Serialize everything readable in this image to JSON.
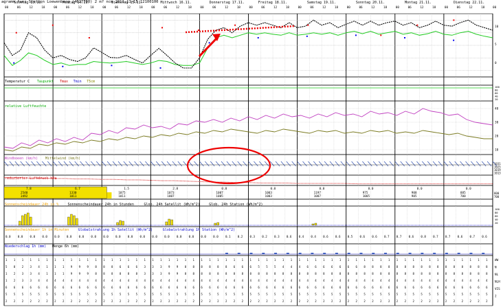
{
  "header": "agramm fuer Station Loewenberg (4627700) 2 m? ncm 2011-11-15 12100100",
  "days": [
    {
      "label": "Sonntag 13.11."
    },
    {
      "label": "Montag 14.11."
    },
    {
      "label": "Dienstag 15.11."
    },
    {
      "label": "Mittwoch 16.11."
    },
    {
      "label": "Donnerstag 17.11."
    },
    {
      "label": "Freitag 18.11."
    },
    {
      "label": "Samstag 19.11."
    },
    {
      "label": "Sonntag 20.11."
    },
    {
      "label": "Montag 21.11."
    },
    {
      "label": "Dienstag 22.11."
    }
  ],
  "hour_ticks": [
    "00",
    "06",
    "12",
    "18"
  ],
  "panel_labels": {
    "temp": [
      "Temperatur C",
      "Taupunkt",
      "Tmax",
      "Tmin",
      "T5cm"
    ],
    "humidity": "relative Luftfeuchte",
    "wind": [
      "Windboeen (km/h)",
      "Mittelwind (km/h)"
    ],
    "pressure": "reduzierter Luftdruck hPa",
    "sun": [
      "Sonnenscheindauer 24h in %",
      "Sonnenscheindauer 24h in Stunden",
      "Glob. 24h Satellit (Wh/m^2)",
      "Glob. 24h Station (Wh/m^2)"
    ],
    "sun1h": [
      "Sonnenscheindauer 1h in Minuten",
      "Globalstrahlung 1h Satellit (Wh/m^2)",
      "Globalstrahlung 1h Station (Wh/m^2)"
    ],
    "precip": [
      "Niederschlag 1h (mm)",
      "Menge 6h (mm)"
    ]
  },
  "right_axis": {
    "temp": [
      "10",
      "5",
      "0"
    ],
    "small": [
      "100",
      "80",
      "60",
      "40",
      "20"
    ],
    "humidity": [
      "40",
      "30",
      "20",
      "10"
    ],
    "pressure": [
      "1031",
      "1025",
      "1019",
      "1013"
    ],
    "sun24": [
      "800",
      "700"
    ],
    "sun1h": [
      "100",
      "80",
      "60",
      "40",
      "20"
    ],
    "codes": [
      "WW",
      "N",
      "NL",
      "NLH",
      "VIS",
      "2"
    ]
  },
  "sun24_values": [
    {
      "top": "7.8",
      "mid": "2540",
      "bot": "3492"
    },
    {
      "top": "6.7",
      "mid": "1330",
      "bot": "1011"
    },
    {
      "top": "1.5",
      "mid": "1075",
      "bot": "1011"
    },
    {
      "top": "2.8",
      "mid": "1073",
      "bot": "1007"
    },
    {
      "top": "0.8",
      "mid": "1007",
      "bot": "1005"
    },
    {
      "top": "0.0",
      "mid": "1003",
      "bot": "1003"
    },
    {
      "top": "0.0",
      "mid": "1197",
      "bot": "1007"
    },
    {
      "top": "0.0",
      "mid": "975",
      "bot": "1005"
    },
    {
      "top": "0.0",
      "mid": "908",
      "bot": "905"
    },
    {
      "top": "0.0",
      "mid": "885",
      "bot": "700"
    }
  ],
  "precip_values": [
    "0.0",
    "0.0",
    "0.0",
    "0.0",
    "0.0",
    "0.0",
    "0.0",
    "0.0",
    "0.0",
    "0.0",
    "0.0",
    "0.0",
    "0.0",
    "0.0",
    "0.0",
    "0.0",
    "0.0",
    "0.0",
    "0.1",
    "0.2",
    "0.3",
    "0.2",
    "0.3",
    "0.6",
    "0.4",
    "0.4",
    "0.6",
    "0.6",
    "0.5",
    "0.6",
    "0.6",
    "0.7",
    "0.7",
    "0.6",
    "0.8",
    "0.7",
    "0.7",
    "0.6",
    "0.7",
    "0.6"
  ],
  "chart_data": {
    "type": "line",
    "temperature": [
      5.5,
      3.0,
      4.0,
      7.5,
      6.5,
      4.0,
      2.5,
      3.0,
      2.2,
      1.8,
      2.5,
      4.5,
      3.6,
      2.6,
      2.5,
      3.0,
      2.2,
      1.5,
      3.0,
      4.4,
      3.0,
      1.5,
      0.5,
      0.5,
      2.5,
      6.2,
      8.0,
      8.5,
      7.5,
      8.8,
      9.5,
      9.0,
      9.5,
      9.0,
      8.5,
      9.5,
      8.5,
      8.8,
      10.0,
      9.0,
      9.5,
      8.5,
      9.2,
      9.8,
      9.0,
      9.8,
      9.0,
      9.5,
      9.8,
      9.0,
      9.5,
      8.5,
      9.0,
      9.8,
      9.0,
      8.8,
      9.5,
      10.0,
      9.0,
      8.5,
      8.0
    ],
    "dewpoint": [
      3.0,
      1.0,
      2.0,
      3.5,
      3.0,
      2.0,
      1.2,
      1.5,
      1.0,
      1.2,
      1.2,
      1.8,
      1.6,
      1.5,
      1.6,
      1.8,
      1.5,
      1.2,
      1.5,
      2.0,
      1.8,
      1.2,
      1.0,
      1.0,
      1.5,
      4.5,
      6.5,
      7.0,
      6.5,
      7.0,
      7.5,
      7.2,
      7.5,
      7.2,
      7.0,
      7.5,
      7.0,
      7.2,
      7.5,
      7.2,
      7.5,
      7.0,
      7.5,
      7.8,
      7.3,
      7.8,
      7.2,
      7.5,
      7.8,
      7.2,
      7.5,
      7.0,
      7.3,
      7.8,
      7.2,
      7.0,
      7.5,
      7.8,
      7.2,
      6.8,
      6.5
    ],
    "tmax": [
      7.5,
      9.0,
      6.5,
      null,
      8.5,
      8.0,
      9.0,
      null,
      9.0,
      null,
      7.0,
      9.0,
      10.0
    ],
    "tmin": [
      1.5,
      0.8,
      1.0,
      0.5,
      5.5,
      6.5,
      6.8,
      7.0,
      6.5,
      6.0
    ],
    "humidity_pink": [
      12,
      11,
      15,
      13,
      17,
      15,
      18,
      16,
      19,
      17,
      22,
      21,
      24,
      22,
      26,
      25,
      28,
      26,
      27,
      25,
      29,
      28,
      31,
      30,
      32,
      30,
      33,
      31,
      34,
      32,
      35,
      33,
      36,
      34,
      35,
      33,
      36,
      34,
      37,
      35,
      36,
      34,
      38,
      36,
      37,
      35,
      38,
      36,
      40,
      38,
      37,
      35,
      36,
      32,
      30,
      29,
      28
    ],
    "humidity_olive": [
      10,
      9,
      12,
      11,
      14,
      13,
      15,
      14,
      16,
      15,
      17,
      16,
      18,
      17,
      19,
      18,
      20,
      19,
      21,
      20,
      22,
      21,
      23,
      22,
      24,
      23,
      25,
      24,
      23,
      22,
      24,
      23,
      25,
      24,
      23,
      22,
      24,
      23,
      24,
      22,
      23,
      22,
      24,
      23,
      24,
      22,
      23,
      22,
      24,
      23,
      22,
      21,
      22,
      20,
      19,
      18,
      18
    ],
    "pressure": [
      1028,
      1028,
      1027,
      1027,
      1026,
      1026,
      1025,
      1025,
      1024,
      1024,
      1023,
      1023,
      1022,
      1021,
      1021,
      1020,
      1019,
      1018,
      1018,
      1017,
      1017,
      1016,
      1016,
      1016,
      1015,
      1015,
      1015,
      1015,
      1015,
      1014,
      1014,
      1014,
      1014,
      1014,
      1014,
      1014,
      1014,
      1014,
      1014,
      1014,
      1014
    ]
  }
}
